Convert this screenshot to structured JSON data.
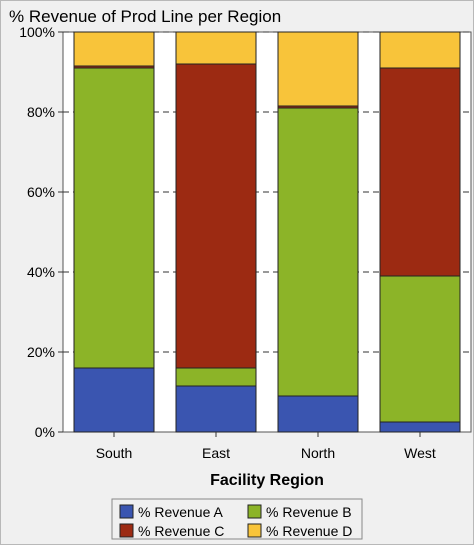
{
  "chart_data": {
    "type": "bar",
    "stacked": true,
    "title": "% Revenue of Prod Line per Region",
    "xlabel": "Facility Region",
    "ylabel": "",
    "ylim": [
      0,
      100
    ],
    "ytick_labels": [
      "0%",
      "20%",
      "40%",
      "60%",
      "80%",
      "100%"
    ],
    "yticks": [
      0,
      20,
      40,
      60,
      80,
      100
    ],
    "categories": [
      "South",
      "East",
      "North",
      "West"
    ],
    "series": [
      {
        "name": "% Revenue A",
        "color": "#3a55b0",
        "values": [
          16,
          11.5,
          9,
          2.5
        ]
      },
      {
        "name": "% Revenue B",
        "color": "#8cb428",
        "values": [
          75,
          4.5,
          72,
          36.5
        ]
      },
      {
        "name": "% Revenue C",
        "color": "#9c2a12",
        "values": [
          0.5,
          76,
          0.5,
          52
        ]
      },
      {
        "name": "% Revenue D",
        "color": "#f8c43a",
        "values": [
          8.5,
          8,
          18.5,
          9
        ]
      }
    ],
    "grid": true,
    "legend_position": "bottom"
  }
}
